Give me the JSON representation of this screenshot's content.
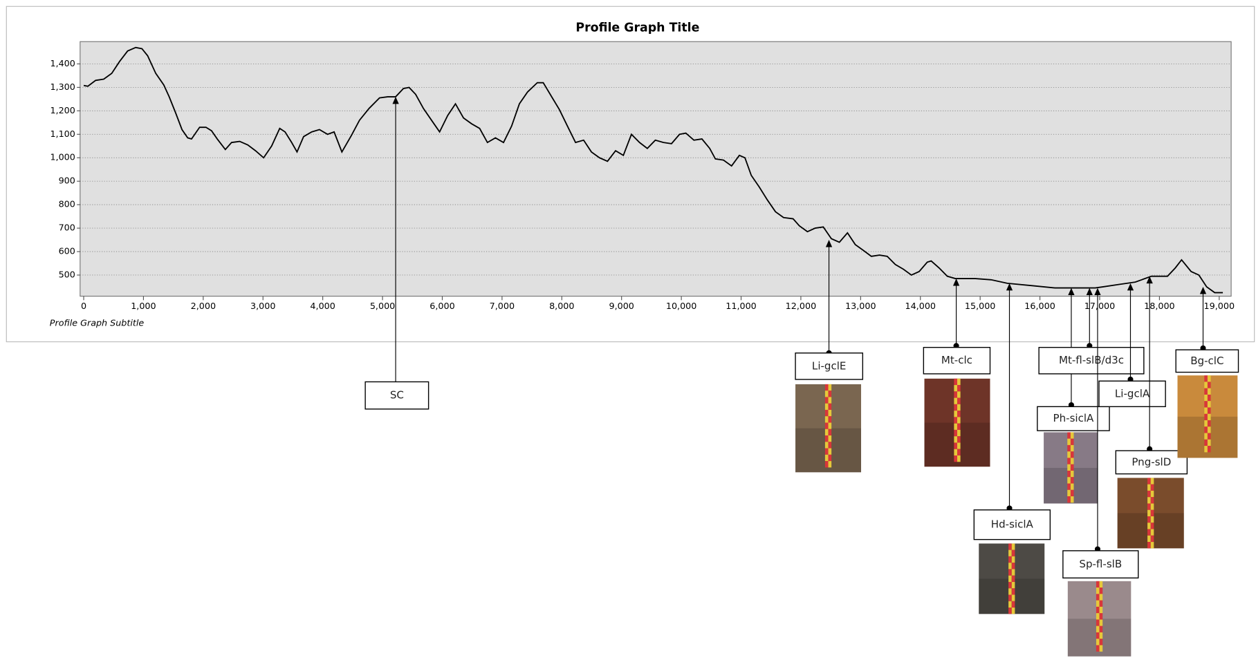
{
  "chart_data": {
    "type": "line",
    "title": "Profile Graph Title",
    "subtitle": "Profile Graph Subtitle",
    "x": [
      0,
      70,
      200,
      335,
      470,
      600,
      735,
      870,
      975,
      1070,
      1205,
      1340,
      1430,
      1540,
      1645,
      1740,
      1805,
      1940,
      2045,
      2140,
      2235,
      2370,
      2475,
      2610,
      2745,
      2875,
      3010,
      3145,
      3280,
      3370,
      3480,
      3570,
      3680,
      3815,
      3945,
      4080,
      4190,
      4320,
      4480,
      4615,
      4775,
      4950,
      5085,
      5220,
      5350,
      5445,
      5555,
      5685,
      5820,
      5955,
      6090,
      6220,
      6355,
      6490,
      6625,
      6755,
      6890,
      7025,
      7160,
      7290,
      7425,
      7590,
      7690,
      7830,
      7960,
      8095,
      8230,
      8365,
      8495,
      8630,
      8765,
      8900,
      9030,
      9165,
      9300,
      9430,
      9565,
      9700,
      9835,
      9970,
      10075,
      10210,
      10345,
      10475,
      10570,
      10705,
      10840,
      10970,
      11065,
      11170,
      11305,
      11440,
      11575,
      11710,
      11870,
      11975,
      12110,
      12240,
      12375,
      12510,
      12645,
      12780,
      12910,
      13045,
      13180,
      13315,
      13445,
      13580,
      13715,
      13850,
      13980,
      14115,
      14180,
      14315,
      14450,
      14585,
      14920,
      15185,
      15455,
      15855,
      16255,
      16525,
      16925,
      17060,
      17325,
      17595,
      17865,
      18135,
      18265,
      18370,
      18530,
      18660,
      18790,
      18925,
      19060
    ],
    "values": [
      1308,
      1305,
      1330,
      1335,
      1360,
      1410,
      1455,
      1470,
      1465,
      1435,
      1360,
      1310,
      1260,
      1190,
      1120,
      1085,
      1080,
      1130,
      1130,
      1115,
      1080,
      1035,
      1065,
      1070,
      1055,
      1030,
      1000,
      1050,
      1125,
      1110,
      1065,
      1025,
      1090,
      1110,
      1120,
      1100,
      1110,
      1025,
      1095,
      1160,
      1210,
      1255,
      1260,
      1260,
      1295,
      1300,
      1270,
      1210,
      1160,
      1110,
      1180,
      1230,
      1170,
      1145,
      1125,
      1065,
      1085,
      1065,
      1135,
      1230,
      1280,
      1320,
      1320,
      1260,
      1205,
      1135,
      1065,
      1075,
      1025,
      1000,
      985,
      1030,
      1010,
      1100,
      1065,
      1040,
      1075,
      1065,
      1060,
      1100,
      1105,
      1075,
      1080,
      1040,
      995,
      990,
      965,
      1010,
      1000,
      925,
      875,
      820,
      770,
      745,
      740,
      710,
      685,
      700,
      705,
      655,
      640,
      680,
      630,
      605,
      580,
      585,
      580,
      545,
      525,
      500,
      515,
      555,
      560,
      530,
      495,
      485,
      485,
      480,
      465,
      455,
      445,
      445,
      445,
      450,
      460,
      470,
      495,
      495,
      530,
      565,
      515,
      500,
      450,
      425,
      425
    ],
    "color": "#000000",
    "xlim": [
      -60,
      19200
    ],
    "ylim": [
      410,
      1495
    ],
    "xticks": [
      0,
      {
        "value": 1000,
        "label": "1,000"
      },
      {
        "value": 2000,
        "label": "2,000"
      },
      {
        "value": 3000,
        "label": "3,000"
      },
      {
        "value": 4000,
        "label": "4,000"
      },
      {
        "value": 5000,
        "label": "5,000"
      },
      {
        "value": 6000,
        "label": "6,000"
      },
      {
        "value": 7000,
        "label": "7,000"
      },
      {
        "value": 8000,
        "label": "8,000"
      },
      {
        "value": 9000,
        "label": "9,000"
      },
      {
        "value": 10000,
        "label": "10,000"
      },
      {
        "value": 11000,
        "label": "11,000"
      },
      {
        "value": 12000,
        "label": "12,000"
      },
      {
        "value": 13000,
        "label": "13,000"
      },
      {
        "value": 14000,
        "label": "14,000"
      },
      {
        "value": 15000,
        "label": "15,000"
      },
      {
        "value": 16000,
        "label": "16,000"
      },
      {
        "value": 17000,
        "label": "17,000"
      },
      {
        "value": 18000,
        "label": "18,000"
      },
      {
        "value": 19000,
        "label": "19,000"
      }
    ],
    "yticks": [
      500,
      600,
      700,
      800,
      900,
      {
        "value": 1000,
        "label": "1,000"
      },
      {
        "value": 1100,
        "label": "1,100"
      },
      {
        "value": 1200,
        "label": "1,200"
      },
      {
        "value": 1300,
        "label": "1,300"
      },
      {
        "value": 1400,
        "label": "1,400"
      }
    ],
    "grid": true,
    "annotations": [
      {
        "label": "SC",
        "x": 5220,
        "y": 1260
      },
      {
        "label": "Li-gclE",
        "x": 12470,
        "y": 650
      },
      {
        "label": "Mt-clc",
        "x": 14600,
        "y": 485
      },
      {
        "label": "Hd-siclA",
        "x": 15490,
        "y": 465
      },
      {
        "label": "Ph-siclA",
        "x": 16525,
        "y": 445
      },
      {
        "label": "Mt-fl-slB/d3c",
        "x": 16830,
        "y": 445
      },
      {
        "label": "Sp-fl-slB",
        "x": 16965,
        "y": 445
      },
      {
        "label": "Li-gclA",
        "x": 17515,
        "y": 465
      },
      {
        "label": "Png-slD",
        "x": 17835,
        "y": 495
      },
      {
        "label": "Bg-clC",
        "x": 18730,
        "y": 450
      }
    ]
  }
}
